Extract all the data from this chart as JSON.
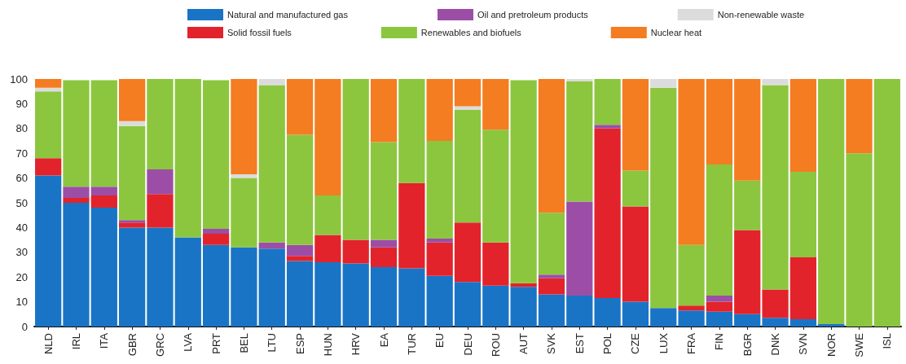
{
  "chart_data": {
    "type": "bar",
    "stacked": true,
    "categories": [
      "NLD",
      "IRL",
      "ITA",
      "GBR",
      "GRC",
      "LVA",
      "PRT",
      "BEL",
      "LTU",
      "ESP",
      "HUN",
      "HRV",
      "EA",
      "TUR",
      "EU",
      "DEU",
      "ROU",
      "AUT",
      "SVK",
      "EST",
      "POL",
      "CZE",
      "LUX",
      "FRA",
      "FIN",
      "BGR",
      "DNK",
      "SVN",
      "NOR",
      "SWE",
      "ISL"
    ],
    "series": [
      {
        "name": "Natural and manufactured gas",
        "color": "#1a74c6",
        "values": [
          61,
          50,
          48,
          40,
          40,
          36,
          33,
          32,
          31.5,
          26.5,
          26,
          25.5,
          24,
          23.5,
          20.5,
          18,
          16.5,
          16,
          13,
          12.5,
          11.5,
          10,
          7.5,
          6.5,
          6,
          5,
          3.5,
          3,
          1,
          0,
          0
        ]
      },
      {
        "name": "Solid fossil fuels",
        "color": "#e2232b",
        "values": [
          7,
          2,
          5,
          2,
          13.5,
          0,
          4.5,
          0,
          0,
          2,
          11,
          9.5,
          8,
          34.5,
          13.5,
          24,
          17.5,
          1.5,
          6.5,
          0,
          68.5,
          38.5,
          0,
          2,
          4,
          34,
          11.5,
          25,
          0,
          0,
          0
        ]
      },
      {
        "name": "Oil and pretroleum products",
        "color": "#9c4ea6",
        "values": [
          0,
          4.5,
          3.5,
          1,
          10,
          0,
          2,
          0,
          2.5,
          4.5,
          0,
          0,
          3,
          0,
          1.5,
          0,
          0,
          0,
          1.5,
          38,
          1.5,
          0,
          0,
          0,
          2.5,
          0,
          0,
          0,
          0,
          0,
          0
        ]
      },
      {
        "name": "Renewables and biofuels",
        "color": "#8cc63e",
        "values": [
          27,
          43,
          43,
          38,
          36.5,
          64,
          60,
          28,
          63.5,
          44.5,
          16,
          65,
          39.5,
          42,
          39.5,
          45.5,
          45.5,
          82,
          25,
          48.5,
          18.5,
          14.5,
          89,
          24.5,
          53,
          20,
          82.5,
          34.5,
          99,
          70,
          100
        ]
      },
      {
        "name": "Non-renewable waste",
        "color": "#dcdcdc",
        "values": [
          1.5,
          null,
          null,
          2,
          0,
          0,
          null,
          1.5,
          2.5,
          0,
          0,
          0,
          0,
          0,
          0,
          1.5,
          0,
          null,
          0,
          1,
          0,
          0,
          3.5,
          0,
          0,
          0,
          2.5,
          0,
          0,
          0,
          0
        ]
      },
      {
        "name": "Nuclear heat",
        "color": "#f47c21",
        "values": [
          3.5,
          0,
          0,
          17,
          0,
          0,
          0,
          38.5,
          0,
          22.5,
          47,
          0,
          25.5,
          0,
          25,
          11,
          20.5,
          0,
          54,
          0,
          0,
          37,
          0,
          67,
          34.5,
          41,
          0,
          37.5,
          0,
          30,
          0
        ]
      }
    ],
    "ylim": [
      0,
      100
    ],
    "yticks": [
      0,
      10,
      20,
      30,
      40,
      50,
      60,
      70,
      80,
      90,
      100
    ],
    "grid": false,
    "legend": "top"
  }
}
